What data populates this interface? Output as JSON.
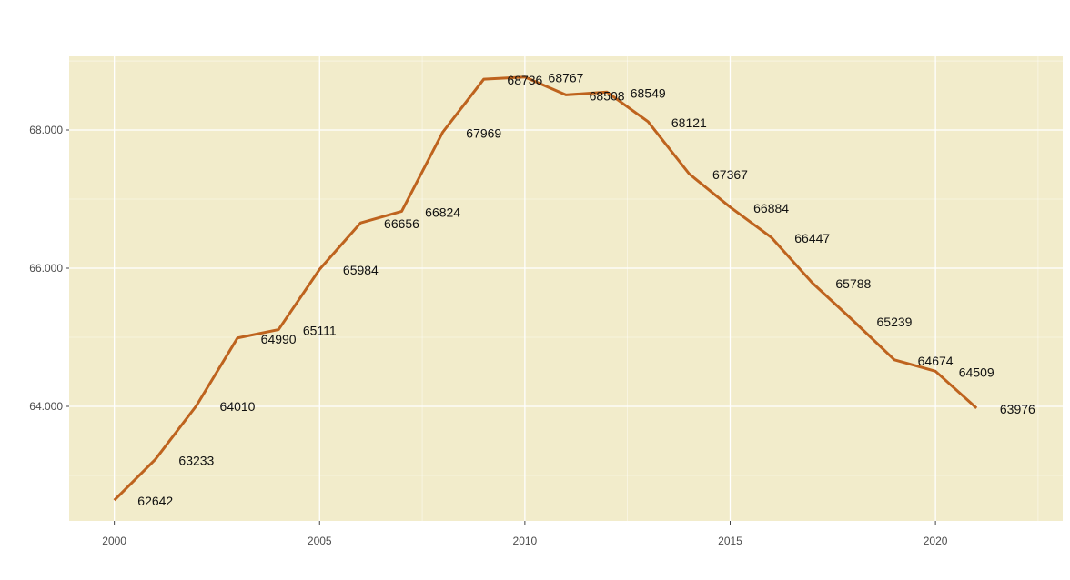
{
  "chart_data": {
    "type": "line",
    "title": "",
    "xlabel": "",
    "ylabel": "",
    "x": [
      2000,
      2001,
      2002,
      2003,
      2004,
      2005,
      2006,
      2007,
      2008,
      2009,
      2010,
      2011,
      2012,
      2013,
      2014,
      2015,
      2016,
      2017,
      2018,
      2019,
      2020,
      2021
    ],
    "series": [
      {
        "name": "value",
        "values": [
          62642,
          63233,
          64010,
          64990,
          65111,
          65984,
          66656,
          66824,
          67969,
          68736,
          68767,
          68508,
          68549,
          68121,
          67367,
          66884,
          66447,
          65788,
          65239,
          64674,
          64509,
          63976
        ]
      }
    ],
    "xlim": [
      1998.9,
      2023.1
    ],
    "ylim": [
      62342,
      69066
    ],
    "x_ticks": [
      2000,
      2005,
      2010,
      2015,
      2020
    ],
    "x_tick_labels": [
      "2000",
      "2005",
      "2010",
      "2015",
      "2020"
    ],
    "y_ticks": [
      64000,
      66000,
      68000
    ],
    "y_tick_labels": [
      "64.000",
      "66.000",
      "68.000"
    ],
    "grid": true,
    "legend": "none",
    "colors": {
      "line": "#BE631E",
      "panel": "#F2ECCB",
      "grid": "#FFFFFF"
    }
  }
}
